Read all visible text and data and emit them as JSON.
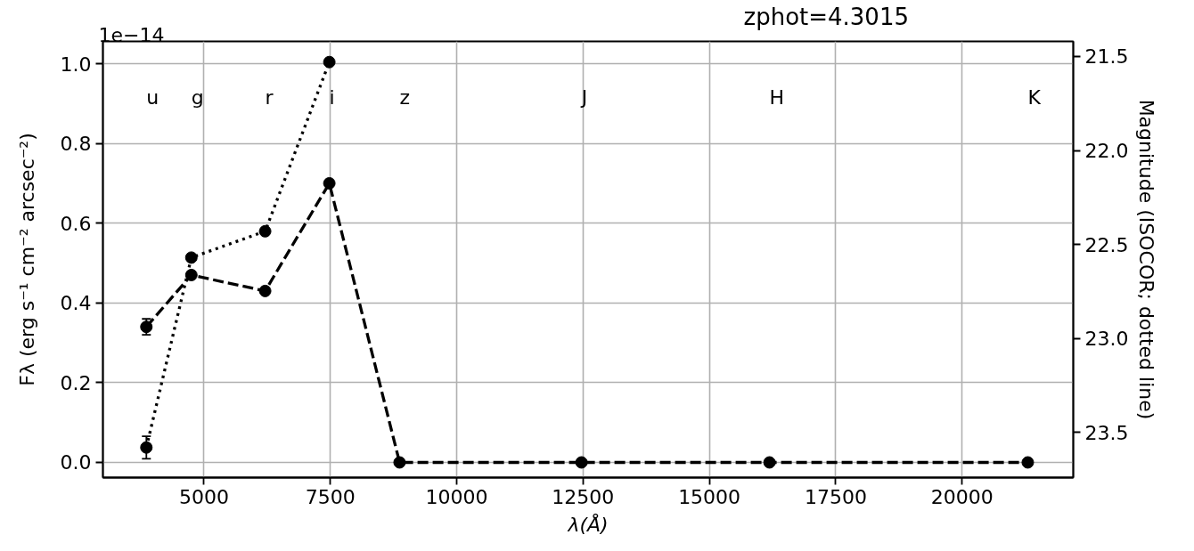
{
  "chart_data": {
    "type": "line",
    "title": "zphot=4.3015",
    "xlabel": "λ(Å)",
    "ylabel": "Fλ (erg s⁻¹ cm⁻² arcsec⁻²)",
    "y2label": "Magnitude (ISOCOR; dotted line)",
    "x": [
      3860,
      4750,
      6210,
      7480,
      8870,
      12470,
      16190,
      21300
    ],
    "series": [
      {
        "color": "#000000",
        "line_style": "dashed",
        "values": [
          0.34,
          0.47,
          0.43,
          0.7,
          0,
          0,
          0,
          0
        ],
        "errors": [
          0.02,
          null,
          null,
          null,
          null,
          null,
          null,
          null
        ]
      },
      {
        "color": "#000000",
        "line_style": "dotted",
        "axis": "y2",
        "values": [
          23.58,
          22.57,
          22.43,
          21.53,
          null,
          null,
          null,
          null
        ],
        "errors": [
          0.06,
          null,
          null,
          null,
          null,
          null,
          null,
          null
        ]
      }
    ],
    "xlim": [
      3000,
      22200
    ],
    "xticks": [
      5000,
      7500,
      10000,
      12500,
      15000,
      17500,
      20000
    ],
    "ylim": [
      -0.038,
      1.056
    ],
    "yticks": [
      {
        "value": 0,
        "label": "0.0"
      },
      0.2,
      0.4,
      0.6,
      0.8,
      {
        "value": 1,
        "label": "1.0"
      }
    ],
    "y2lim": [
      23.74,
      21.42
    ],
    "y2ticks": [
      21.5,
      {
        "value": 22,
        "label": "22.0"
      },
      22.5,
      {
        "value": 23,
        "label": "23.0"
      },
      23.5
    ],
    "annotations": [
      "u",
      "g",
      "r",
      "i",
      "z",
      "J",
      "H",
      "K",
      "1e−14"
    ],
    "grid": true,
    "marker": "circle"
  }
}
